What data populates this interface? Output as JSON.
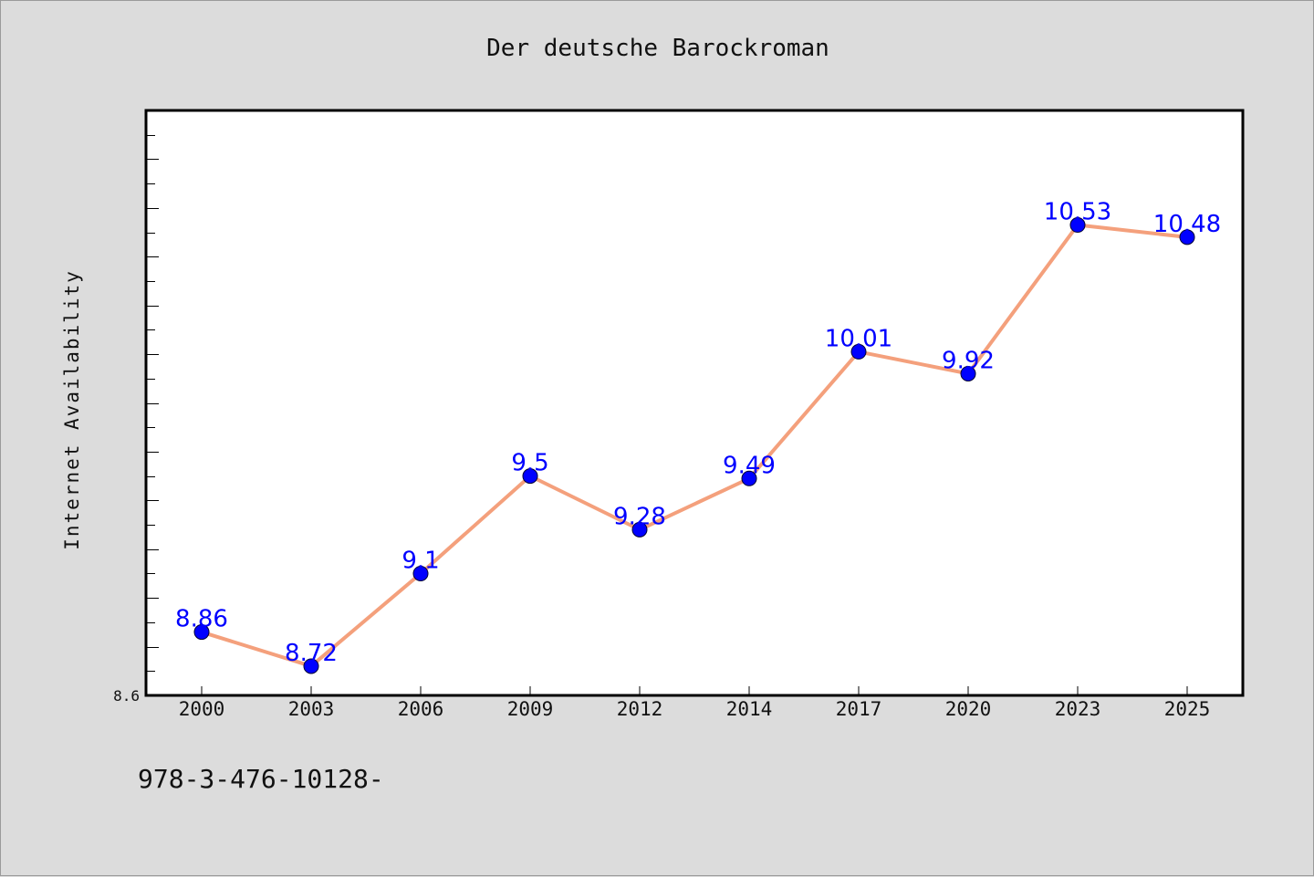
{
  "chart_data": {
    "type": "line",
    "title": "Der deutsche Barockroman",
    "xlabel": "",
    "ylabel": "Internet Availability",
    "categories": [
      "2000",
      "2003",
      "2006",
      "2009",
      "2012",
      "2014",
      "2017",
      "2020",
      "2023",
      "2025"
    ],
    "series": [
      {
        "values": [
          8.86,
          8.72,
          9.1,
          9.5,
          9.28,
          9.49,
          10.01,
          9.92,
          10.53,
          10.48
        ],
        "data_labels": [
          "8.86",
          "8.72",
          "9.1",
          "9.5",
          "9.28",
          "9.49",
          "10.01",
          "9.92",
          "10.53",
          "10.48"
        ]
      }
    ],
    "ylim": [
      8.6,
      11.0
    ],
    "y_tick_labels": [
      "8.6"
    ],
    "grid": false,
    "legend": "none",
    "colors": {
      "line": "#f4a07c",
      "marker": "#0000ff",
      "label": "#0000ff"
    }
  },
  "footer": {
    "text": "978-3-476-10128-"
  }
}
